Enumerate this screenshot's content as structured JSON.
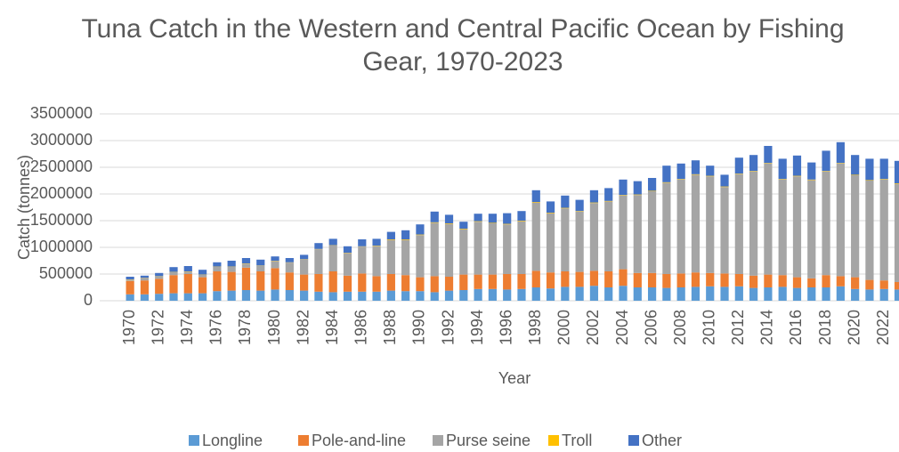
{
  "chart_data": {
    "type": "stacked_bar",
    "title": "Tuna Catch in the Western and Central Pacific Ocean by Fishing Gear, 1970-2023",
    "x_label": "Year",
    "y_label": "Catch (tonnes)",
    "categories": [
      "1970",
      null,
      "1972",
      null,
      "1974",
      null,
      "1976",
      null,
      "1978",
      null,
      "1980",
      null,
      "1982",
      null,
      "1984",
      null,
      "1986",
      null,
      "1988",
      null,
      "1990",
      null,
      "1992",
      null,
      "1994",
      null,
      "1996",
      null,
      "1998",
      null,
      "2000",
      null,
      "2002",
      null,
      "2004",
      null,
      "2006",
      null,
      "2008",
      null,
      "2010",
      null,
      "2012",
      null,
      "2014",
      null,
      "2016",
      null,
      "2018",
      null,
      "2020",
      null,
      "2022",
      null
    ],
    "series": [
      {
        "name": "Longline",
        "color": "#5b9bd5",
        "values": [
          120000,
          120000,
          130000,
          140000,
          140000,
          140000,
          180000,
          190000,
          200000,
          190000,
          210000,
          200000,
          190000,
          170000,
          160000,
          170000,
          170000,
          170000,
          190000,
          180000,
          180000,
          160000,
          190000,
          200000,
          220000,
          220000,
          210000,
          220000,
          250000,
          230000,
          260000,
          260000,
          280000,
          250000,
          280000,
          250000,
          250000,
          240000,
          250000,
          260000,
          270000,
          260000,
          270000,
          240000,
          250000,
          260000,
          240000,
          250000,
          250000,
          270000,
          220000,
          210000,
          220000,
          210000
        ]
      },
      {
        "name": "Pole-and-line",
        "color": "#ed7d31",
        "values": [
          250000,
          260000,
          280000,
          340000,
          360000,
          300000,
          370000,
          350000,
          420000,
          360000,
          400000,
          330000,
          300000,
          330000,
          390000,
          300000,
          340000,
          290000,
          310000,
          300000,
          260000,
          300000,
          260000,
          290000,
          270000,
          270000,
          290000,
          280000,
          310000,
          300000,
          290000,
          280000,
          280000,
          300000,
          310000,
          270000,
          270000,
          260000,
          260000,
          270000,
          250000,
          250000,
          230000,
          230000,
          240000,
          220000,
          200000,
          170000,
          230000,
          190000,
          220000,
          180000,
          160000,
          140000
        ]
      },
      {
        "name": "Purse seine",
        "color": "#a5a5a5",
        "values": [
          25000,
          45000,
          45000,
          55000,
          45000,
          45000,
          85000,
          95000,
          75000,
          105000,
          135000,
          185000,
          285000,
          465000,
          485000,
          425000,
          505000,
          560000,
          640000,
          660000,
          790000,
          1000000,
          990000,
          850000,
          990000,
          960000,
          930000,
          990000,
          1280000,
          1110000,
          1180000,
          1130000,
          1270000,
          1310000,
          1380000,
          1460000,
          1530000,
          1710000,
          1760000,
          1830000,
          1810000,
          1620000,
          1870000,
          1950000,
          2080000,
          1790000,
          1890000,
          1840000,
          1940000,
          2110000,
          1910000,
          1860000,
          1890000,
          1840000
        ]
      },
      {
        "name": "Troll",
        "color": "#ffc000",
        "values": [
          5000,
          5000,
          5000,
          5000,
          5000,
          5000,
          5000,
          5000,
          5000,
          5000,
          5000,
          5000,
          5000,
          5000,
          5000,
          5000,
          5000,
          10000,
          10000,
          10000,
          10000,
          10000,
          10000,
          10000,
          10000,
          10000,
          10000,
          10000,
          10000,
          10000,
          10000,
          10000,
          10000,
          10000,
          10000,
          10000,
          10000,
          10000,
          10000,
          10000,
          10000,
          10000,
          10000,
          10000,
          10000,
          10000,
          10000,
          10000,
          10000,
          10000,
          10000,
          10000,
          10000,
          10000
        ]
      },
      {
        "name": "Other",
        "color": "#4472c4",
        "values": [
          50000,
          40000,
          60000,
          90000,
          100000,
          90000,
          80000,
          110000,
          100000,
          110000,
          80000,
          80000,
          80000,
          110000,
          120000,
          120000,
          130000,
          130000,
          140000,
          170000,
          190000,
          200000,
          160000,
          130000,
          140000,
          170000,
          200000,
          180000,
          220000,
          210000,
          230000,
          210000,
          230000,
          240000,
          290000,
          250000,
          240000,
          310000,
          290000,
          260000,
          190000,
          220000,
          300000,
          300000,
          320000,
          380000,
          380000,
          320000,
          380000,
          390000,
          370000,
          400000,
          380000,
          420000
        ]
      }
    ],
    "ylim": [
      0,
      3500000
    ],
    "yticks": [
      0,
      500000,
      1000000,
      1500000,
      2000000,
      2500000,
      3000000,
      3500000
    ],
    "grid": true,
    "legend": "bottom"
  }
}
